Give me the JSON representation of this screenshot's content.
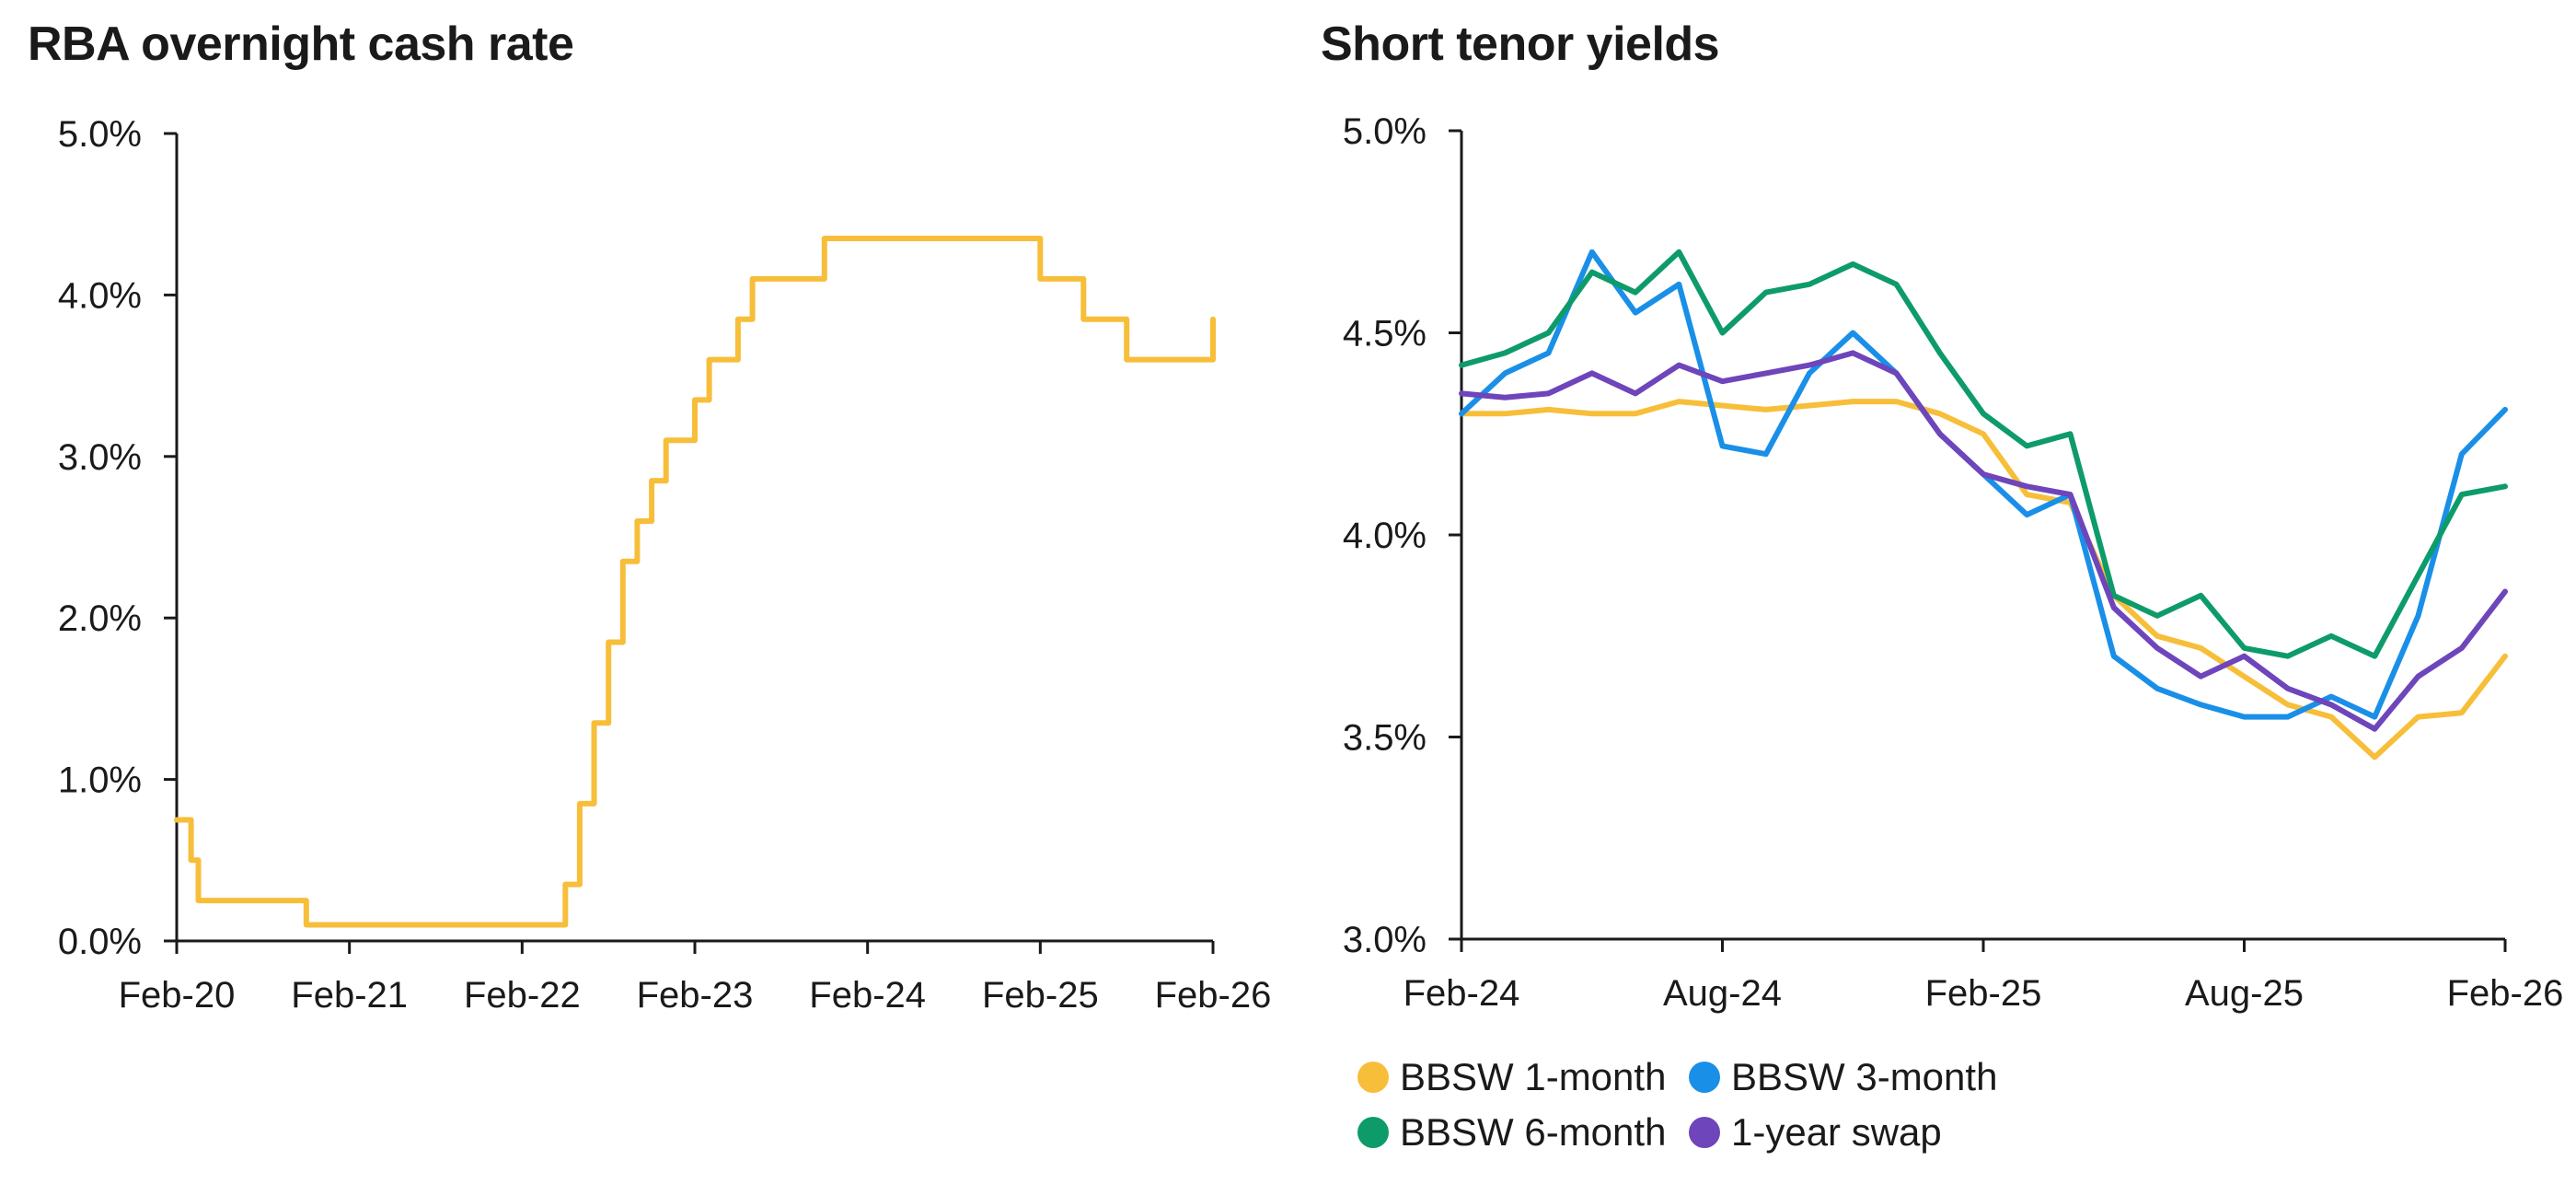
{
  "chart_data": [
    {
      "type": "line",
      "title": "RBA overnight cash rate",
      "xlabel": "",
      "ylabel": "",
      "x_range": [
        "2020-02",
        "2026-02"
      ],
      "ylim": [
        0,
        5
      ],
      "y_ticks": [
        "0.0%",
        "1.0%",
        "2.0%",
        "3.0%",
        "4.0%",
        "5.0%"
      ],
      "x_ticks": [
        "Feb-20",
        "Feb-21",
        "Feb-22",
        "Feb-23",
        "Feb-24",
        "Feb-25",
        "Feb-26"
      ],
      "grid": false,
      "series": [
        {
          "name": "",
          "color": "#F7BE3A",
          "step": true,
          "points": [
            [
              "2020-02",
              0.75
            ],
            [
              "2020-03",
              0.5
            ],
            [
              "2020-03.5",
              0.25
            ],
            [
              "2020-11",
              0.1
            ],
            [
              "2022-05",
              0.35
            ],
            [
              "2022-06",
              0.85
            ],
            [
              "2022-07",
              1.35
            ],
            [
              "2022-08",
              1.85
            ],
            [
              "2022-09",
              2.35
            ],
            [
              "2022-10",
              2.6
            ],
            [
              "2022-11",
              2.85
            ],
            [
              "2022-12",
              3.1
            ],
            [
              "2023-02",
              3.35
            ],
            [
              "2023-03",
              3.6
            ],
            [
              "2023-05",
              3.85
            ],
            [
              "2023-06",
              4.1
            ],
            [
              "2023-11",
              4.35
            ],
            [
              "2025-02",
              4.1
            ],
            [
              "2025-05",
              3.85
            ],
            [
              "2025-08",
              3.6
            ],
            [
              "2026-02",
              3.85
            ]
          ]
        }
      ]
    },
    {
      "type": "line",
      "title": "Short tenor yields",
      "xlabel": "",
      "ylabel": "",
      "x_range": [
        "2024-02",
        "2026-02"
      ],
      "ylim": [
        3.0,
        5.0
      ],
      "y_ticks": [
        "3.0%",
        "3.5%",
        "4.0%",
        "4.5%",
        "5.0%"
      ],
      "x_ticks": [
        "Feb-24",
        "Aug-24",
        "Feb-25",
        "Aug-25",
        "Feb-26"
      ],
      "grid": false,
      "legend_position": "bottom",
      "series": [
        {
          "name": "BBSW 1-month",
          "color": "#F7BE3A",
          "points": [
            [
              "2024-02",
              4.3
            ],
            [
              "2024-03",
              4.3
            ],
            [
              "2024-04",
              4.31
            ],
            [
              "2024-05",
              4.3
            ],
            [
              "2024-06",
              4.3
            ],
            [
              "2024-07",
              4.33
            ],
            [
              "2024-08",
              4.32
            ],
            [
              "2024-09",
              4.31
            ],
            [
              "2024-10",
              4.32
            ],
            [
              "2024-11",
              4.33
            ],
            [
              "2024-12",
              4.33
            ],
            [
              "2025-01",
              4.3
            ],
            [
              "2025-02",
              4.25
            ],
            [
              "2025-03",
              4.1
            ],
            [
              "2025-04",
              4.08
            ],
            [
              "2025-05",
              3.85
            ],
            [
              "2025-06",
              3.75
            ],
            [
              "2025-07",
              3.72
            ],
            [
              "2025-08",
              3.65
            ],
            [
              "2025-09",
              3.58
            ],
            [
              "2025-10",
              3.55
            ],
            [
              "2025-11",
              3.45
            ],
            [
              "2025-12",
              3.55
            ],
            [
              "2026-01",
              3.56
            ],
            [
              "2026-02",
              3.7
            ]
          ]
        },
        {
          "name": "BBSW 3-month",
          "color": "#1A8FE8",
          "points": [
            [
              "2024-02",
              4.3
            ],
            [
              "2024-03",
              4.4
            ],
            [
              "2024-04",
              4.45
            ],
            [
              "2024-05",
              4.7
            ],
            [
              "2024-06",
              4.55
            ],
            [
              "2024-07",
              4.62
            ],
            [
              "2024-08",
              4.22
            ],
            [
              "2024-09",
              4.2
            ],
            [
              "2024-10",
              4.4
            ],
            [
              "2024-11",
              4.5
            ],
            [
              "2024-12",
              4.4
            ],
            [
              "2025-01",
              4.25
            ],
            [
              "2025-02",
              4.15
            ],
            [
              "2025-03",
              4.05
            ],
            [
              "2025-04",
              4.1
            ],
            [
              "2025-05",
              3.7
            ],
            [
              "2025-06",
              3.62
            ],
            [
              "2025-07",
              3.58
            ],
            [
              "2025-08",
              3.55
            ],
            [
              "2025-09",
              3.55
            ],
            [
              "2025-10",
              3.6
            ],
            [
              "2025-11",
              3.55
            ],
            [
              "2025-12",
              3.8
            ],
            [
              "2026-01",
              4.2
            ],
            [
              "2026-02",
              4.31
            ]
          ]
        },
        {
          "name": "BBSW 6-month",
          "color": "#0E9B6A",
          "points": [
            [
              "2024-02",
              4.42
            ],
            [
              "2024-03",
              4.45
            ],
            [
              "2024-04",
              4.5
            ],
            [
              "2024-05",
              4.65
            ],
            [
              "2024-06",
              4.6
            ],
            [
              "2024-07",
              4.7
            ],
            [
              "2024-08",
              4.5
            ],
            [
              "2024-09",
              4.6
            ],
            [
              "2024-10",
              4.62
            ],
            [
              "2024-11",
              4.67
            ],
            [
              "2024-12",
              4.62
            ],
            [
              "2025-01",
              4.45
            ],
            [
              "2025-02",
              4.3
            ],
            [
              "2025-03",
              4.22
            ],
            [
              "2025-04",
              4.25
            ],
            [
              "2025-05",
              3.85
            ],
            [
              "2025-06",
              3.8
            ],
            [
              "2025-07",
              3.85
            ],
            [
              "2025-08",
              3.72
            ],
            [
              "2025-09",
              3.7
            ],
            [
              "2025-10",
              3.75
            ],
            [
              "2025-11",
              3.7
            ],
            [
              "2025-12",
              3.9
            ],
            [
              "2026-01",
              4.1
            ],
            [
              "2026-02",
              4.12
            ]
          ]
        },
        {
          "name": "1-year swap",
          "color": "#6E45BB",
          "points": [
            [
              "2024-02",
              4.35
            ],
            [
              "2024-03",
              4.34
            ],
            [
              "2024-04",
              4.35
            ],
            [
              "2024-05",
              4.4
            ],
            [
              "2024-06",
              4.35
            ],
            [
              "2024-07",
              4.42
            ],
            [
              "2024-08",
              4.38
            ],
            [
              "2024-09",
              4.4
            ],
            [
              "2024-10",
              4.42
            ],
            [
              "2024-11",
              4.45
            ],
            [
              "2024-12",
              4.4
            ],
            [
              "2025-01",
              4.25
            ],
            [
              "2025-02",
              4.15
            ],
            [
              "2025-03",
              4.12
            ],
            [
              "2025-04",
              4.1
            ],
            [
              "2025-05",
              3.82
            ],
            [
              "2025-06",
              3.72
            ],
            [
              "2025-07",
              3.65
            ],
            [
              "2025-08",
              3.7
            ],
            [
              "2025-09",
              3.62
            ],
            [
              "2025-10",
              3.58
            ],
            [
              "2025-11",
              3.52
            ],
            [
              "2025-12",
              3.65
            ],
            [
              "2026-01",
              3.72
            ],
            [
              "2026-02",
              3.86
            ]
          ]
        }
      ]
    }
  ]
}
